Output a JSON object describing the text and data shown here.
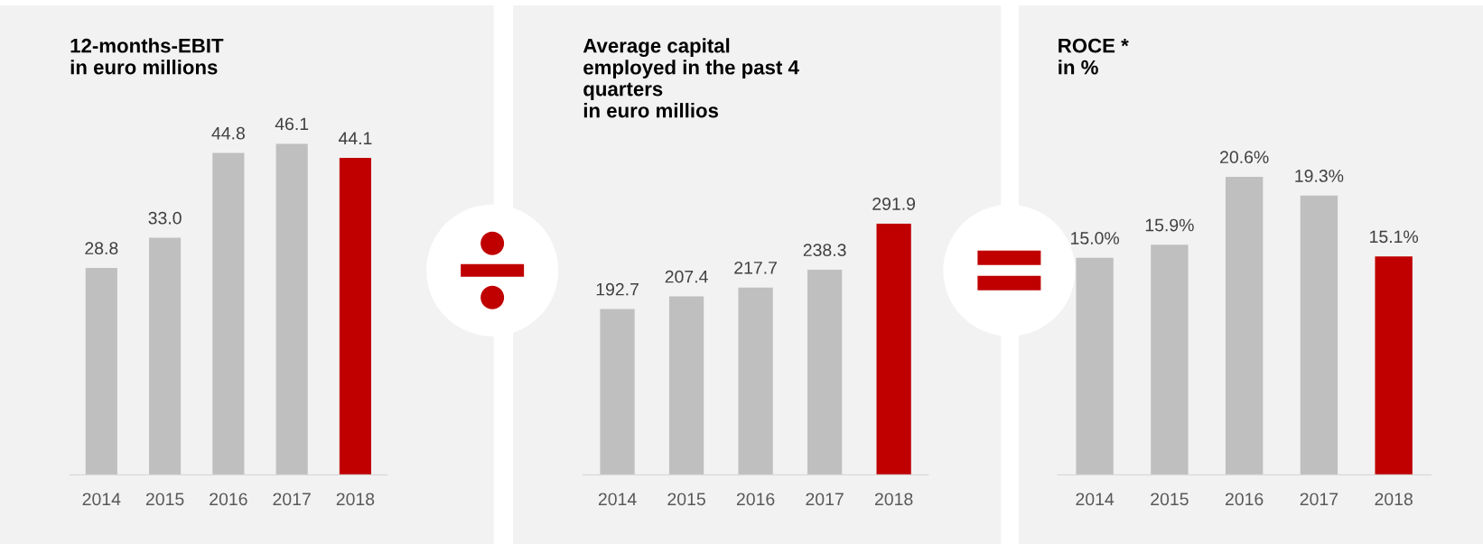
{
  "chart_data": [
    {
      "type": "bar",
      "title": "12-months-EBIT\nin euro millions",
      "categories": [
        "2014",
        "2015",
        "2016",
        "2017",
        "2018"
      ],
      "values": [
        28.8,
        33.0,
        44.8,
        46.1,
        44.1
      ],
      "colors": [
        "#bfbfbf",
        "#bfbfbf",
        "#bfbfbf",
        "#bfbfbf",
        "#c00000"
      ],
      "value_labels": [
        "28.8",
        "33.0",
        "44.8",
        "46.1",
        "44.1"
      ]
    },
    {
      "type": "bar",
      "title": "Average capital\nemployed in the past 4\nquarters\nin euro millios",
      "categories": [
        "2014",
        "2015",
        "2016",
        "2017",
        "2018"
      ],
      "values": [
        192.7,
        207.4,
        217.7,
        238.3,
        291.9
      ],
      "colors": [
        "#bfbfbf",
        "#bfbfbf",
        "#bfbfbf",
        "#bfbfbf",
        "#c00000"
      ],
      "value_labels": [
        "192.7",
        "207.4",
        "217.7",
        "238.3",
        "291.9"
      ]
    },
    {
      "type": "bar",
      "title": "ROCE *\nin %",
      "categories": [
        "2014",
        "2015",
        "2016",
        "2017",
        "2018"
      ],
      "values": [
        15.0,
        15.9,
        20.6,
        19.3,
        15.1
      ],
      "colors": [
        "#bfbfbf",
        "#bfbfbf",
        "#bfbfbf",
        "#bfbfbf",
        "#c00000"
      ],
      "value_labels": [
        "15.0%",
        "15.9%",
        "20.6%",
        "19.3%",
        "15.1%"
      ]
    }
  ]
}
